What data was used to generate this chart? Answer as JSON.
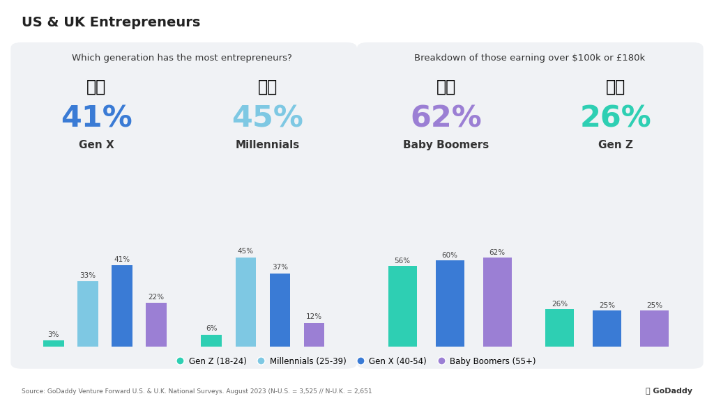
{
  "main_title": "US & UK Entrepreneurs",
  "bg_color": "#ffffff",
  "panel_color": "#f0f2f5",
  "left_panel_title": "Which generation has the most entrepreneurs?",
  "right_panel_title": "Breakdown of those earning over $100k or £180k",
  "left_bars": {
    "us": [
      3,
      33,
      41,
      22
    ],
    "uk": [
      6,
      45,
      37,
      12
    ]
  },
  "right_bars": {
    "us": [
      56,
      60,
      62
    ],
    "uk": [
      26,
      25,
      25
    ]
  },
  "bar_colors": {
    "gen_z": "#2ecfb3",
    "millennials": "#7ec8e3",
    "gen_x": "#3a7bd5",
    "baby_boomers": "#9b7fd4"
  },
  "legend_labels": [
    "Gen Z (18-24)",
    "Millennials (25-39)",
    "Gen X (40-54)",
    "Baby Boomers (55+)"
  ],
  "legend_colors": [
    "#2ecfb3",
    "#7ec8e3",
    "#3a7bd5",
    "#9b7fd4"
  ],
  "source_text": "Source: GoDaddy Venture Forward U.S. & U.K. National Surveys. August 2023 (N-U.S. = 3,525 // N-U.K. = 2,651"
}
